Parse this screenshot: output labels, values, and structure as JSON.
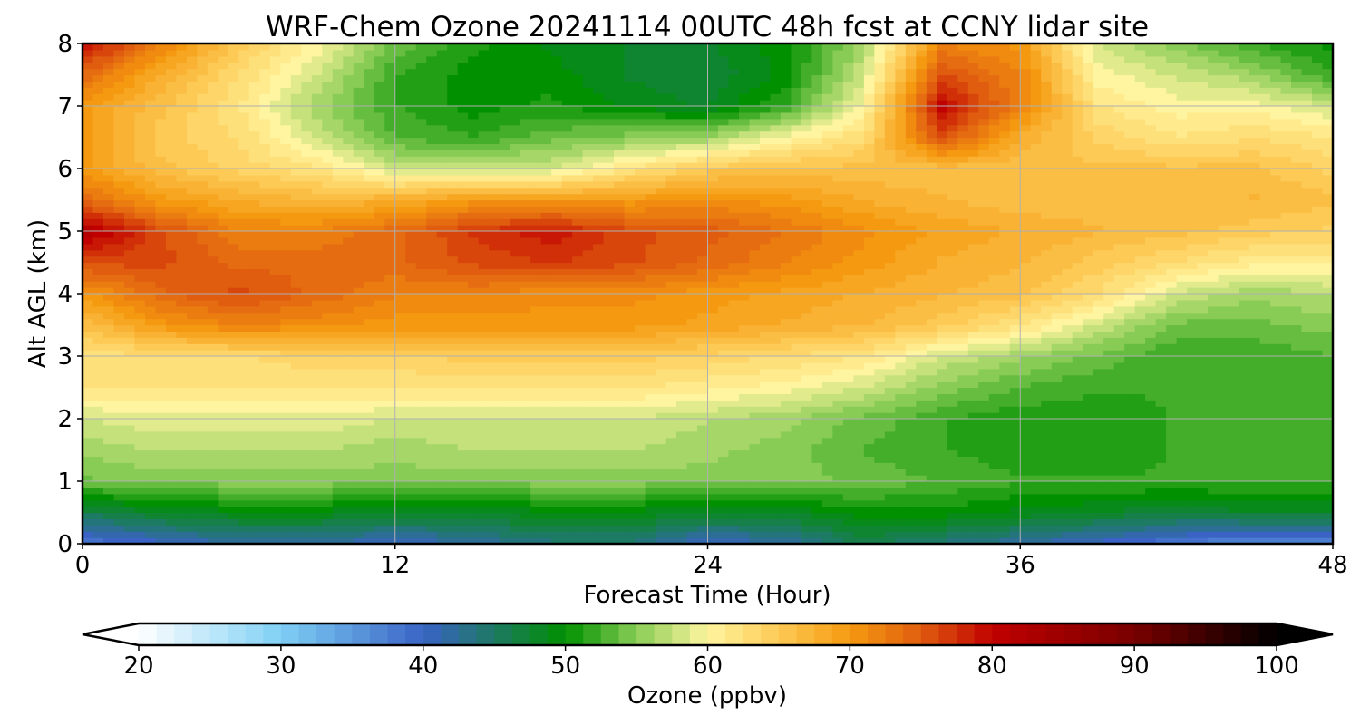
{
  "chart_data": {
    "type": "heatmap",
    "title": "WRF-Chem Ozone  20241114 00UTC 48h fcst at CCNY lidar site",
    "xlabel": "Forecast Time (Hour)",
    "ylabel": "Alt AGL (km)",
    "xlim": [
      0,
      48
    ],
    "ylim": [
      0,
      8
    ],
    "x_ticks": [
      0,
      12,
      24,
      36,
      48
    ],
    "x_tick_labels": [
      "0",
      "12",
      "24",
      "36",
      "48"
    ],
    "y_ticks": [
      0,
      1,
      2,
      3,
      4,
      5,
      6,
      7,
      8
    ],
    "y_tick_labels": [
      "0",
      "1",
      "2",
      "3",
      "4",
      "5",
      "6",
      "7",
      "8"
    ],
    "grid": true,
    "x": [
      0,
      3,
      6,
      9,
      12,
      15,
      18,
      21,
      24,
      27,
      30,
      33,
      36,
      39,
      42,
      45,
      48
    ],
    "y": [
      0,
      0.5,
      1,
      1.5,
      2,
      2.5,
      3,
      3.5,
      4,
      4.5,
      5,
      5.5,
      6,
      6.5,
      7,
      7.5,
      8
    ],
    "z": [
      [
        38,
        40,
        42,
        42,
        40,
        42,
        44,
        44,
        40,
        42,
        46,
        44,
        42,
        40,
        38,
        36,
        36
      ],
      [
        46,
        48,
        49,
        49,
        48,
        48,
        49,
        49,
        48,
        48,
        50,
        50,
        49,
        48,
        47,
        48,
        48
      ],
      [
        54,
        55,
        55,
        55,
        55,
        55,
        55,
        55,
        55,
        55,
        54,
        53,
        52,
        52,
        52,
        52,
        52
      ],
      [
        56,
        57,
        57,
        57,
        56,
        57,
        57,
        57,
        56,
        55,
        53,
        52,
        51,
        51,
        52,
        52,
        52
      ],
      [
        58,
        59,
        59,
        59,
        58,
        58,
        58,
        58,
        57,
        56,
        54,
        52,
        51,
        51,
        52,
        52,
        52
      ],
      [
        62,
        62,
        62,
        62,
        62,
        62,
        62,
        62,
        61,
        60,
        58,
        55,
        53,
        52,
        52,
        53,
        53
      ],
      [
        62,
        63,
        63,
        64,
        64,
        65,
        65,
        65,
        64,
        63,
        62,
        58,
        56,
        54,
        52,
        52,
        53
      ],
      [
        66,
        70,
        72,
        71,
        70,
        70,
        70,
        70,
        69,
        68,
        67,
        65,
        62,
        58,
        54,
        54,
        55
      ],
      [
        70,
        74,
        76,
        74,
        72,
        72,
        71,
        71,
        70,
        69,
        68,
        67,
        66,
        63,
        58,
        56,
        57
      ],
      [
        76,
        76,
        74,
        74,
        74,
        76,
        77,
        76,
        74,
        72,
        70,
        68,
        67,
        65,
        63,
        61,
        61
      ],
      [
        82,
        76,
        72,
        72,
        74,
        77,
        79,
        76,
        75,
        73,
        71,
        69,
        68,
        67,
        66,
        65,
        64
      ],
      [
        74,
        70,
        68,
        67,
        68,
        70,
        70,
        70,
        71,
        70,
        68,
        67,
        66,
        66,
        66,
        67,
        66
      ],
      [
        70,
        66,
        64,
        62,
        58,
        58,
        58,
        62,
        65,
        66,
        66,
        66,
        66,
        66,
        66,
        66,
        64
      ],
      [
        70,
        65,
        63,
        58,
        53,
        52,
        54,
        55,
        56,
        60,
        63,
        76,
        68,
        64,
        62,
        63,
        62
      ],
      [
        70,
        66,
        62,
        56,
        52,
        50,
        51,
        49,
        48,
        52,
        60,
        80,
        72,
        62,
        60,
        60,
        58
      ],
      [
        74,
        68,
        63,
        58,
        52,
        50,
        50,
        48,
        47,
        50,
        58,
        76,
        72,
        60,
        58,
        56,
        52
      ],
      [
        80,
        72,
        65,
        60,
        54,
        51,
        49,
        48,
        48,
        50,
        56,
        72,
        70,
        58,
        55,
        52,
        50
      ]
    ],
    "colorbar": {
      "label": "Ozone  (ppbv)",
      "min": 20,
      "max": 100,
      "ticks": [
        20,
        30,
        40,
        50,
        60,
        70,
        80,
        90,
        100
      ],
      "tick_labels": [
        "20",
        "30",
        "40",
        "50",
        "60",
        "70",
        "80",
        "90",
        "100"
      ],
      "extend": "both",
      "stops": [
        {
          "v": 20,
          "c": "#ffffff"
        },
        {
          "v": 30,
          "c": "#7fd0f5"
        },
        {
          "v": 40,
          "c": "#3a63c5"
        },
        {
          "v": 50,
          "c": "#009000"
        },
        {
          "v": 55,
          "c": "#88cc55"
        },
        {
          "v": 60,
          "c": "#fff5a0"
        },
        {
          "v": 65,
          "c": "#fdca55"
        },
        {
          "v": 70,
          "c": "#f59a10"
        },
        {
          "v": 75,
          "c": "#e05d10"
        },
        {
          "v": 80,
          "c": "#c00000"
        },
        {
          "v": 90,
          "c": "#780000"
        },
        {
          "v": 100,
          "c": "#000000"
        }
      ]
    }
  }
}
